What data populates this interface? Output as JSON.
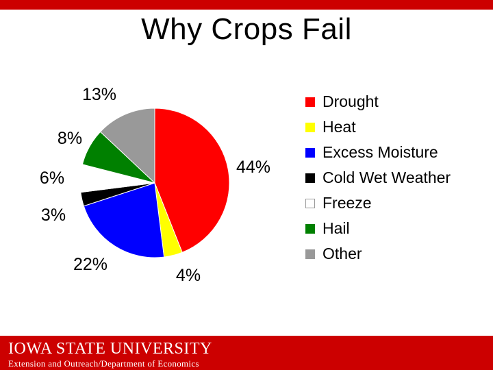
{
  "chart_data": {
    "type": "pie",
    "title": "Why Crops Fail",
    "categories": [
      "Drought",
      "Heat",
      "Excess Moisture",
      "Cold Wet Weather",
      "Freeze",
      "Hail",
      "Other"
    ],
    "values": [
      44,
      4,
      22,
      3,
      6,
      8,
      13
    ],
    "data_labels": [
      "44%",
      "4%",
      "22%",
      "3%",
      "6%",
      "8%",
      "13%"
    ],
    "colors": [
      "#ff0000",
      "#ffff00",
      "#0000ff",
      "#000000",
      "#ffffff",
      "#008000",
      "#999999"
    ],
    "legend": "right"
  },
  "footer": {
    "logo_text": "IOWA STATE UNIVERSITY",
    "subtitle": "Extension and Outreach/Department of Economics",
    "color": "#cc0000"
  }
}
